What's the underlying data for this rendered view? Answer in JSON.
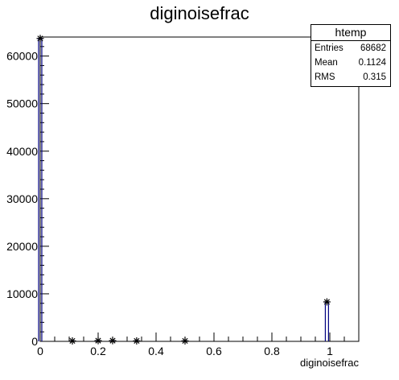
{
  "chart_data": {
    "type": "bar",
    "title": "diginoisefrac",
    "xlabel": "diginoisefrac",
    "ylabel": "",
    "xlim": [
      0,
      1.1
    ],
    "ylim": [
      0,
      64000
    ],
    "x_ticks": [
      "0",
      "0.2",
      "0.4",
      "0.6",
      "0.8",
      "1"
    ],
    "x_tick_values": [
      0,
      0.2,
      0.4,
      0.6,
      0.8,
      1.0
    ],
    "y_ticks": [
      "0",
      "10000",
      "20000",
      "30000",
      "40000",
      "50000",
      "60000"
    ],
    "y_tick_values": [
      0,
      10000,
      20000,
      30000,
      40000,
      50000,
      60000
    ],
    "bins": [
      {
        "x": 0.0,
        "value": 63700
      },
      {
        "x": 0.111,
        "value": 100
      },
      {
        "x": 0.2,
        "value": 150
      },
      {
        "x": 0.25,
        "value": 150
      },
      {
        "x": 0.333,
        "value": 100
      },
      {
        "x": 0.5,
        "value": 100
      },
      {
        "x": 0.99,
        "value": 8300
      }
    ],
    "line_color": "#000080",
    "marker": "asterisk",
    "grid": false
  },
  "stats": {
    "title": "htemp",
    "rows": [
      {
        "label": "Entries",
        "value": "68682"
      },
      {
        "label": "Mean",
        "value": "0.1124"
      },
      {
        "label": "RMS",
        "value": "0.315"
      }
    ]
  }
}
